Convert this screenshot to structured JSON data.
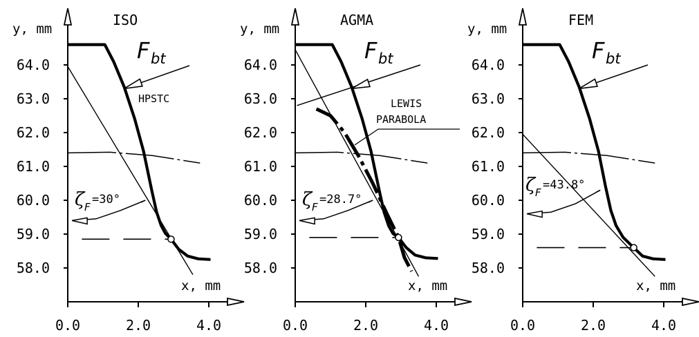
{
  "chart_data": [
    {
      "type": "line",
      "title": "ISO",
      "xlabel": "x, mm",
      "ylabel": "y, mm",
      "xlim": [
        0,
        5
      ],
      "ylim": [
        57,
        65.2
      ],
      "x_ticks": [
        "0.0",
        "2.0",
        "4.0"
      ],
      "y_ticks": [
        "64.0",
        "63.0",
        "62.0",
        "61.0",
        "60.0",
        "59.0",
        "58.0"
      ],
      "force_label": {
        "main": "F",
        "sub": "bt"
      },
      "angle_label": {
        "symbol": "ζ",
        "sub": "F",
        "text": "=30°"
      },
      "note": "HPSTC",
      "note2": "",
      "critical_point": {
        "x": 2.93,
        "y": 58.85
      },
      "force_point": {
        "x": 1.6,
        "y": 63.3
      },
      "tooth_profile": {
        "x": [
          0,
          0.8,
          1.05,
          1.3,
          1.6,
          1.9,
          2.15,
          2.38,
          2.52,
          2.65,
          2.77,
          2.93,
          3.15,
          3.4,
          3.7,
          4.05
        ],
        "y": [
          64.6,
          64.6,
          64.6,
          64.1,
          63.35,
          62.4,
          61.45,
          60.3,
          59.65,
          59.25,
          59.02,
          58.85,
          58.55,
          58.35,
          58.27,
          58.25
        ]
      },
      "tangent_line": {
        "x": [
          0,
          3.55
        ],
        "y": [
          63.95,
          57.8
        ]
      },
      "arc": {
        "x": [
          0,
          1.2,
          2.4,
          3.75
        ],
        "y": [
          61.4,
          61.42,
          61.32,
          61.1
        ]
      },
      "dashed_line": {
        "x": [
          0.4,
          2.93
        ],
        "y": [
          58.85,
          58.85
        ]
      },
      "force_line": {
        "x": [
          1.6,
          3.45
        ],
        "y": [
          63.3,
          63.98
        ]
      },
      "angle_arc": {
        "x": [
          0.12,
          0.8,
          1.5,
          2.2
        ],
        "y": [
          59.4,
          59.45,
          59.7,
          60.0
        ]
      }
    },
    {
      "type": "line",
      "title": "AGMA",
      "xlabel": "x, mm",
      "ylabel": "y, mm",
      "xlim": [
        0,
        5
      ],
      "ylim": [
        57,
        65.2
      ],
      "x_ticks": [
        "0.0",
        "2.0",
        "4.0"
      ],
      "y_ticks": [
        "64.0",
        "63.0",
        "62.0",
        "61.0",
        "60.0",
        "59.0",
        "58.0"
      ],
      "force_label": {
        "main": "F",
        "sub": "bt"
      },
      "angle_label": {
        "symbol": "ζ",
        "sub": "F",
        "text": "=28.7°"
      },
      "note": "LEWIS",
      "note2": "PARABOLA",
      "critical_point": {
        "x": 2.93,
        "y": 58.9
      },
      "force_point": {
        "x": 1.6,
        "y": 63.3
      },
      "tooth_profile": {
        "x": [
          0,
          0.8,
          1.05,
          1.3,
          1.6,
          1.9,
          2.15,
          2.38,
          2.52,
          2.65,
          2.77,
          2.93,
          3.15,
          3.4,
          3.7,
          4.05
        ],
        "y": [
          64.6,
          64.6,
          64.6,
          64.1,
          63.35,
          62.4,
          61.45,
          60.3,
          59.65,
          59.25,
          59.02,
          58.9,
          58.6,
          58.38,
          58.3,
          58.28
        ]
      },
      "tangent_line": {
        "x": [
          0,
          3.5
        ],
        "y": [
          64.45,
          57.75
        ]
      },
      "arc": {
        "x": [
          0,
          1.2,
          2.4,
          3.75
        ],
        "y": [
          61.4,
          61.42,
          61.32,
          61.1
        ]
      },
      "dashed_line": {
        "x": [
          0.4,
          2.93
        ],
        "y": [
          58.9,
          58.9
        ]
      },
      "force_line": {
        "x": [
          0.05,
          3.55
        ],
        "y": [
          62.8,
          64.0
        ]
      },
      "angle_arc": {
        "x": [
          0.12,
          0.8,
          1.5,
          2.2
        ],
        "y": [
          59.4,
          59.45,
          59.7,
          60.0
        ]
      },
      "parabola": {
        "x": [
          0.6,
          1.0,
          1.4,
          1.8,
          2.2,
          2.6,
          2.93,
          3.1,
          3.3
        ],
        "y": [
          62.7,
          62.5,
          62.0,
          61.3,
          60.5,
          59.6,
          58.9,
          58.3,
          57.9
        ]
      }
    },
    {
      "type": "line",
      "title": "FEM",
      "xlabel": "x, mm",
      "ylabel": "y, mm",
      "xlim": [
        0,
        5
      ],
      "ylim": [
        57,
        65.2
      ],
      "x_ticks": [
        "0.0",
        "2.0",
        "4.0"
      ],
      "y_ticks": [
        "64.0",
        "63.0",
        "62.0",
        "61.0",
        "60.0",
        "59.0",
        "58.0"
      ],
      "force_label": {
        "main": "F",
        "sub": "bt"
      },
      "angle_label": {
        "symbol": "ζ",
        "sub": "F",
        "text": "=43.8°"
      },
      "note": "",
      "note2": "",
      "critical_point": {
        "x": 3.15,
        "y": 58.6
      },
      "force_point": {
        "x": 1.6,
        "y": 63.3
      },
      "tooth_profile": {
        "x": [
          0,
          0.8,
          1.05,
          1.3,
          1.6,
          1.9,
          2.15,
          2.35,
          2.5,
          2.65,
          2.85,
          3.15,
          3.4,
          3.7,
          4.05
        ],
        "y": [
          64.6,
          64.6,
          64.6,
          64.1,
          63.35,
          62.4,
          61.45,
          60.4,
          59.7,
          59.25,
          58.9,
          58.6,
          58.35,
          58.27,
          58.25
        ]
      },
      "tangent_line": {
        "x": [
          0,
          3.75
        ],
        "y": [
          61.95,
          57.75
        ]
      },
      "arc": {
        "x": [
          0,
          1.2,
          2.4,
          3.75
        ],
        "y": [
          61.4,
          61.42,
          61.32,
          61.1
        ]
      },
      "dashed_line": {
        "x": [
          0.4,
          3.15
        ],
        "y": [
          58.6,
          58.6
        ]
      },
      "force_line": {
        "x": [
          1.6,
          3.55
        ],
        "y": [
          63.3,
          64.0
        ]
      },
      "angle_arc": {
        "x": [
          0.12,
          0.8,
          1.5,
          2.2
        ],
        "y": [
          59.6,
          59.65,
          59.9,
          60.3
        ]
      }
    }
  ]
}
